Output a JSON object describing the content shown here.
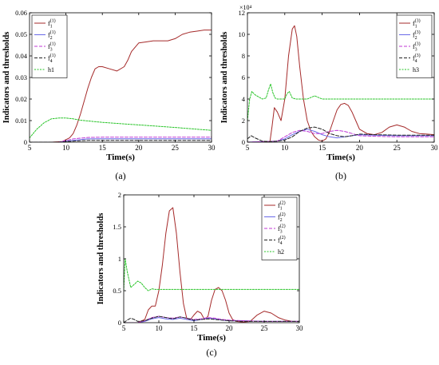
{
  "chart_data": [
    {
      "id": "a",
      "type": "line",
      "caption": "(a)",
      "xlabel": "Time(s)",
      "ylabel": "Indicators and thresholds",
      "xlim": [
        5,
        30
      ],
      "ylim": [
        0,
        0.06
      ],
      "xticks": [
        5,
        10,
        15,
        20,
        25,
        30
      ],
      "yticks": [
        0,
        0.01,
        0.02,
        0.03,
        0.04,
        0.05,
        0.06
      ],
      "ytick_labels": [
        "0",
        "0.01",
        "0.02",
        "0.03",
        "0.04",
        "0.05",
        "0.06"
      ],
      "scale_note": "",
      "grid": false,
      "legend_position": "top-left",
      "series": [
        {
          "name": "f₁⁽¹⁾",
          "sub": "1",
          "sup": "(1)",
          "color": "#a52a2a",
          "dash": "",
          "threshold": false,
          "x": [
            5,
            8,
            9.5,
            10.5,
            11,
            11.5,
            12,
            12.5,
            13,
            13.5,
            14,
            14.5,
            15,
            16,
            17,
            18,
            18.5,
            19,
            20,
            21,
            22,
            23,
            24,
            25,
            26,
            27,
            28,
            29,
            30
          ],
          "y": [
            0,
            0,
            0.0003,
            0.002,
            0.004,
            0.008,
            0.013,
            0.019,
            0.025,
            0.03,
            0.034,
            0.035,
            0.035,
            0.034,
            0.033,
            0.035,
            0.038,
            0.042,
            0.046,
            0.0465,
            0.047,
            0.047,
            0.047,
            0.048,
            0.05,
            0.051,
            0.0515,
            0.052,
            0.052
          ]
        },
        {
          "name": "f₂⁽¹⁾",
          "sub": "2",
          "sup": "(1)",
          "color": "#6a6ae8",
          "dash": "",
          "threshold": false,
          "x": [
            5,
            9,
            11,
            13,
            15,
            20,
            25,
            30
          ],
          "y": [
            0,
            0,
            0.0008,
            0.0015,
            0.0016,
            0.0016,
            0.0016,
            0.0016
          ]
        },
        {
          "name": "f₃⁽¹⁾",
          "sub": "3",
          "sup": "(1)",
          "color": "#c03ad6",
          "dash": "4,2",
          "threshold": false,
          "x": [
            5,
            9,
            11,
            13,
            15,
            20,
            25,
            30
          ],
          "y": [
            0,
            0,
            0.0015,
            0.0022,
            0.0023,
            0.0023,
            0.0023,
            0.0023
          ]
        },
        {
          "name": "f₄⁽¹⁾",
          "sub": "4",
          "sup": "(1)",
          "color": "#222222",
          "dash": "4,2",
          "threshold": false,
          "x": [
            5,
            9,
            11,
            13,
            15,
            20,
            25,
            30
          ],
          "y": [
            0,
            0,
            0.0005,
            0.0008,
            0.0008,
            0.0008,
            0.0008,
            0.0008
          ]
        },
        {
          "name": "h1",
          "sub": "",
          "sup": "",
          "color": "#27c427",
          "dash": "2,1.5",
          "threshold": true,
          "x": [
            5,
            6,
            7,
            8,
            9,
            10,
            11,
            12,
            15,
            20,
            25,
            30
          ],
          "y": [
            0.002,
            0.006,
            0.009,
            0.0108,
            0.0112,
            0.0112,
            0.0108,
            0.0102,
            0.0092,
            0.008,
            0.0068,
            0.0055
          ]
        }
      ]
    },
    {
      "id": "b",
      "type": "line",
      "caption": "(b)",
      "xlabel": "Time(s)",
      "ylabel": "Indicators and thresholds",
      "xlim": [
        5,
        30
      ],
      "ylim": [
        0,
        120000
      ],
      "xticks": [
        5,
        10,
        15,
        20,
        25,
        30
      ],
      "yticks": [
        0,
        20000,
        40000,
        60000,
        80000,
        100000,
        120000
      ],
      "ytick_labels": [
        "0",
        "2",
        "4",
        "6",
        "8",
        "10",
        "12"
      ],
      "scale_note": "×10⁴",
      "grid": false,
      "legend_position": "top-right",
      "series": [
        {
          "name": "f₁⁽³⁾",
          "sub": "1",
          "sup": "(3)",
          "color": "#a52a2a",
          "dash": "",
          "threshold": false,
          "x": [
            5,
            5.5,
            6,
            6.5,
            7,
            7.5,
            8,
            8.3,
            8.6,
            9,
            9.5,
            10,
            10.5,
            11,
            11.3,
            11.6,
            12,
            12.5,
            13,
            13.5,
            14,
            14.5,
            15,
            15.5,
            16,
            16.5,
            17,
            17.5,
            18,
            18.5,
            19,
            19.5,
            20,
            21,
            22,
            23,
            24,
            25,
            26,
            27,
            28,
            29,
            30
          ],
          "y": [
            0,
            0,
            0,
            0,
            0,
            0,
            0,
            15000,
            32000,
            28000,
            20000,
            40000,
            80000,
            105000,
            108000,
            98000,
            70000,
            40000,
            20000,
            10000,
            5000,
            2000,
            1000,
            3000,
            10000,
            20000,
            30000,
            35000,
            36000,
            34000,
            28000,
            20000,
            12000,
            8000,
            7000,
            9000,
            14000,
            16000,
            14000,
            10000,
            8000,
            7500,
            7000
          ]
        },
        {
          "name": "f₂⁽³⁾",
          "sub": "2",
          "sup": "(3)",
          "color": "#6a6ae8",
          "dash": "",
          "threshold": false,
          "x": [
            5,
            7,
            9,
            10,
            11,
            12,
            13,
            14,
            15,
            16,
            17,
            18,
            19,
            20,
            22,
            25,
            30
          ],
          "y": [
            0,
            500,
            1000,
            3000,
            7000,
            10000,
            12000,
            10000,
            7000,
            5000,
            4000,
            5000,
            6000,
            7000,
            6500,
            6000,
            6000
          ]
        },
        {
          "name": "f₃⁽³⁾",
          "sub": "3",
          "sup": "(3)",
          "color": "#c03ad6",
          "dash": "4,2",
          "threshold": false,
          "x": [
            5,
            7,
            9,
            10,
            11,
            12,
            13,
            14,
            15,
            16,
            17,
            18,
            19,
            20,
            22,
            25,
            30
          ],
          "y": [
            0,
            500,
            1000,
            5000,
            9000,
            11000,
            10000,
            8000,
            8000,
            10000,
            11000,
            10000,
            8000,
            6000,
            5500,
            5000,
            5000
          ]
        },
        {
          "name": "f₄⁽³⁾",
          "sub": "4",
          "sup": "(3)",
          "color": "#222222",
          "dash": "4,2",
          "threshold": false,
          "x": [
            5,
            5.5,
            6,
            7,
            8,
            9,
            10,
            11,
            12,
            13,
            14,
            15,
            16,
            17,
            18,
            19,
            20,
            22,
            25,
            30
          ],
          "y": [
            3000,
            6000,
            4000,
            1000,
            500,
            1000,
            2000,
            5000,
            10000,
            13000,
            14000,
            12000,
            8000,
            6000,
            5000,
            6000,
            7500,
            7000,
            6500,
            6500
          ]
        },
        {
          "name": "h3",
          "sub": "",
          "sup": "",
          "color": "#27c427",
          "dash": "2,1.5",
          "threshold": true,
          "x": [
            5,
            5.3,
            5.6,
            6,
            6.5,
            7,
            7.5,
            7.8,
            8.1,
            8.4,
            8.7,
            9,
            9.5,
            10,
            10.3,
            10.6,
            11,
            11.5,
            12,
            13,
            14,
            15,
            20,
            25,
            30
          ],
          "y": [
            20000,
            40000,
            47000,
            44000,
            42000,
            40000,
            41000,
            48000,
            54000,
            46000,
            41000,
            40000,
            40000,
            40000,
            45000,
            47000,
            41000,
            40000,
            40000,
            40000,
            43000,
            40000,
            40000,
            40000,
            40000
          ]
        }
      ]
    },
    {
      "id": "c",
      "type": "line",
      "caption": "(c)",
      "xlabel": "Time(s)",
      "ylabel": "Indicators and thresholds",
      "xlim": [
        5,
        30
      ],
      "ylim": [
        0,
        2
      ],
      "xticks": [
        5,
        10,
        15,
        20,
        25,
        30
      ],
      "yticks": [
        0,
        0.5,
        1,
        1.5,
        2
      ],
      "ytick_labels": [
        "0",
        "0.5",
        "1",
        "1.5",
        "2"
      ],
      "scale_note": "",
      "grid": false,
      "legend_position": "top-right",
      "series": [
        {
          "name": "f₁⁽²⁾",
          "sub": "1",
          "sup": "(2)",
          "color": "#a52a2a",
          "dash": "",
          "threshold": false,
          "x": [
            5,
            6,
            7,
            8,
            8.5,
            9,
            9.5,
            10,
            10.5,
            11,
            11.5,
            12,
            12.5,
            13,
            13.5,
            14,
            14.5,
            15,
            15.5,
            16,
            16.5,
            17,
            17.5,
            18,
            18.5,
            19,
            19.5,
            20,
            20.5,
            21,
            22,
            23,
            24,
            25,
            26,
            27,
            28,
            29,
            30
          ],
          "y": [
            0,
            0,
            0,
            0.05,
            0.2,
            0.26,
            0.26,
            0.5,
            0.9,
            1.4,
            1.75,
            1.8,
            1.4,
            0.8,
            0.3,
            0.05,
            0.05,
            0.12,
            0.18,
            0.15,
            0.05,
            0.1,
            0.35,
            0.52,
            0.55,
            0.5,
            0.35,
            0.15,
            0.05,
            0.02,
            0.01,
            0.02,
            0.12,
            0.18,
            0.15,
            0.08,
            0.04,
            0.02,
            0.02
          ]
        },
        {
          "name": "f₂⁽²⁾",
          "sub": "2",
          "sup": "(2)",
          "color": "#6a6ae8",
          "dash": "",
          "threshold": false,
          "x": [
            5,
            7,
            8,
            9,
            10,
            11,
            12,
            13,
            14,
            15,
            16,
            17,
            18,
            19,
            20,
            22,
            25,
            30
          ],
          "y": [
            0,
            0,
            0.02,
            0.06,
            0.08,
            0.06,
            0.05,
            0.07,
            0.05,
            0.03,
            0.05,
            0.07,
            0.06,
            0.04,
            0.03,
            0.03,
            0.02,
            0.02
          ]
        },
        {
          "name": "f₃⁽²⁾",
          "sub": "3",
          "sup": "(2)",
          "color": "#c03ad6",
          "dash": "4,2",
          "threshold": false,
          "x": [
            5,
            7,
            8,
            9,
            10,
            11,
            12,
            13,
            14,
            15,
            16,
            17,
            18,
            19,
            20,
            22,
            25,
            30
          ],
          "y": [
            0,
            0,
            0.03,
            0.08,
            0.1,
            0.08,
            0.07,
            0.09,
            0.07,
            0.05,
            0.06,
            0.08,
            0.07,
            0.05,
            0.04,
            0.03,
            0.02,
            0.02
          ]
        },
        {
          "name": "f₄⁽²⁾",
          "sub": "4",
          "sup": "(2)",
          "color": "#222222",
          "dash": "4,2",
          "threshold": false,
          "x": [
            5,
            5.5,
            6,
            6.5,
            7,
            8,
            9,
            10,
            11,
            12,
            13,
            14,
            15,
            16,
            17,
            18,
            19,
            20,
            22,
            25,
            30
          ],
          "y": [
            0,
            0.04,
            0.07,
            0.05,
            0.02,
            0.03,
            0.07,
            0.1,
            0.08,
            0.06,
            0.09,
            0.07,
            0.04,
            0.05,
            0.06,
            0.05,
            0.04,
            0.03,
            0.02,
            0.02,
            0.02
          ]
        },
        {
          "name": "h2",
          "sub": "",
          "sup": "",
          "color": "#27c427",
          "dash": "2,1.5",
          "threshold": true,
          "x": [
            5,
            5.2,
            5.5,
            6,
            6.5,
            7,
            7.5,
            8,
            8.5,
            9,
            9.5,
            10,
            12,
            15,
            20,
            25,
            30
          ],
          "y": [
            0.5,
            1.0,
            0.8,
            0.55,
            0.6,
            0.65,
            0.62,
            0.55,
            0.5,
            0.53,
            0.52,
            0.52,
            0.52,
            0.52,
            0.52,
            0.52,
            0.52
          ]
        }
      ]
    }
  ]
}
